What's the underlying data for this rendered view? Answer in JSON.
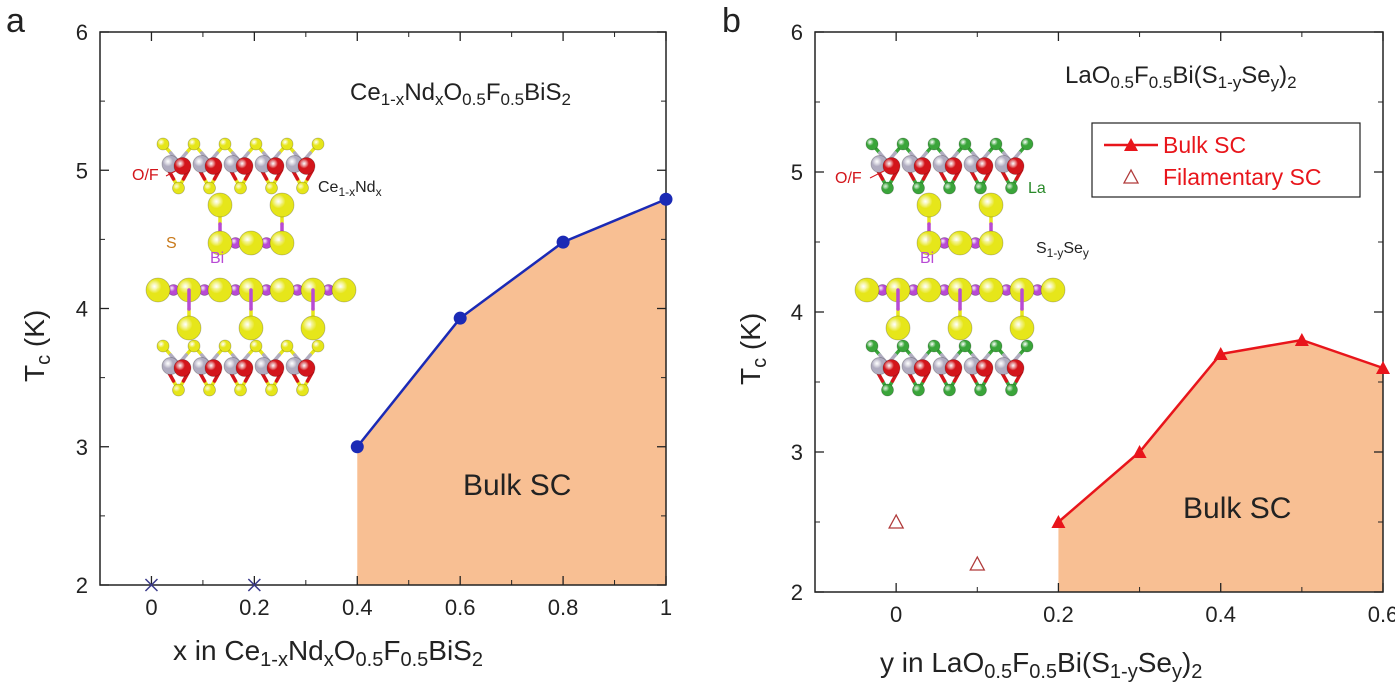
{
  "colors": {
    "bulk_fill": "#f8bf93",
    "panel_a_line": "#1b2ab5",
    "panel_b_line": "#e8151b",
    "filamentary_marker": "#b03a3a",
    "atom_OF": "#d3151b",
    "atom_S": "#e6e61a",
    "atom_Bi": "#b84ad4",
    "atom_CeNd": "#b0acc0",
    "atom_La": "#3aa53a"
  },
  "chart_data": [
    {
      "panel": "a",
      "type": "line",
      "title": {
        "main": "Ce",
        "parts": [
          [
            "Ce",
            ""
          ],
          [
            "1-x",
            "sub"
          ],
          [
            "Nd",
            ""
          ],
          [
            "x",
            "sub"
          ],
          [
            "O",
            ""
          ],
          [
            "0.5",
            "sub"
          ],
          [
            "F",
            ""
          ],
          [
            "0.5",
            "sub"
          ],
          [
            "BiS",
            ""
          ],
          [
            "2",
            "sub"
          ]
        ]
      },
      "xlabel_parts": [
        [
          "x in Ce",
          ""
        ],
        [
          "1-x",
          "sub"
        ],
        [
          "Nd",
          ""
        ],
        [
          "x",
          "sub"
        ],
        [
          "O",
          ""
        ],
        [
          "0.5",
          "sub"
        ],
        [
          "F",
          ""
        ],
        [
          "0.5",
          "sub"
        ],
        [
          "BiS",
          ""
        ],
        [
          "2",
          "sub"
        ]
      ],
      "ylabel": "T",
      "ylabel_sub": "c",
      "ylabel_unit": " (K)",
      "xlim": [
        -0.1,
        1.0
      ],
      "ylim": [
        2,
        6
      ],
      "xticks": [
        0,
        0.2,
        0.4,
        0.6,
        0.8,
        1
      ],
      "xtick_labels": [
        "0",
        "0.2",
        "0.4",
        "0.6",
        "0.8",
        "1"
      ],
      "yticks": [
        2,
        3,
        4,
        5,
        6
      ],
      "ytick_labels": [
        "2",
        "3",
        "4",
        "5",
        "6"
      ],
      "series": [
        {
          "marker": "circle",
          "x": [
            0.4,
            0.6,
            0.8,
            1.0
          ],
          "y": [
            3.0,
            3.93,
            4.48,
            4.79
          ]
        },
        {
          "marker": "x",
          "x": [
            0,
            0.2
          ],
          "y": [
            2.0,
            2.0
          ]
        }
      ],
      "region_label": "Bulk SC",
      "structure_labels": {
        "of": "O/F",
        "cation": "Ce",
        "cation_parts": [
          [
            "Ce",
            ""
          ],
          [
            "1-x",
            "sub"
          ],
          [
            "Nd",
            ""
          ],
          [
            "x",
            "sub"
          ]
        ],
        "s": "S",
        "bi": "Bi"
      }
    },
    {
      "panel": "b",
      "type": "line",
      "title_parts": [
        [
          "LaO",
          ""
        ],
        [
          "0.5",
          "sub"
        ],
        [
          "F",
          ""
        ],
        [
          "0.5",
          "sub"
        ],
        [
          "Bi(S",
          ""
        ],
        [
          "1-y",
          "sub"
        ],
        [
          "Se",
          ""
        ],
        [
          "y",
          "sub"
        ],
        [
          ")",
          ""
        ],
        [
          "2",
          "sub"
        ]
      ],
      "xlabel_parts": [
        [
          "y in LaO",
          ""
        ],
        [
          "0.5",
          "sub"
        ],
        [
          "F",
          ""
        ],
        [
          "0.5",
          "sub"
        ],
        [
          "Bi(S",
          ""
        ],
        [
          "1-y",
          "sub"
        ],
        [
          "Se",
          ""
        ],
        [
          "y",
          "sub"
        ],
        [
          ")",
          ""
        ],
        [
          "2",
          "sub"
        ]
      ],
      "ylabel": "T",
      "ylabel_sub": "c",
      "ylabel_unit": " (K)",
      "xlim": [
        -0.1,
        0.6
      ],
      "ylim": [
        2,
        6
      ],
      "xticks": [
        0,
        0.2,
        0.4,
        0.6
      ],
      "xtick_labels": [
        "0",
        "0.2",
        "0.4",
        "0.6"
      ],
      "yticks": [
        2,
        3,
        4,
        5,
        6
      ],
      "ytick_labels": [
        "2",
        "3",
        "4",
        "5",
        "6"
      ],
      "series": [
        {
          "name": "Bulk SC",
          "marker": "triangle-filled",
          "x": [
            0.2,
            0.3,
            0.4,
            0.5,
            0.6
          ],
          "y": [
            2.5,
            3.0,
            3.7,
            3.8,
            3.6
          ]
        },
        {
          "name": "Filamentary SC",
          "marker": "triangle-open",
          "x": [
            0,
            0.1
          ],
          "y": [
            2.5,
            2.2
          ]
        }
      ],
      "region_label": "Bulk SC",
      "legend_position": "top-right",
      "structure_labels": {
        "of": "O/F",
        "la": "La",
        "bi": "Bi",
        "sse_parts": [
          [
            "S",
            ""
          ],
          [
            "1-y",
            "sub"
          ],
          [
            "Se",
            ""
          ],
          [
            "y",
            "sub"
          ]
        ]
      }
    }
  ],
  "panel_letters": [
    "a",
    "b"
  ]
}
